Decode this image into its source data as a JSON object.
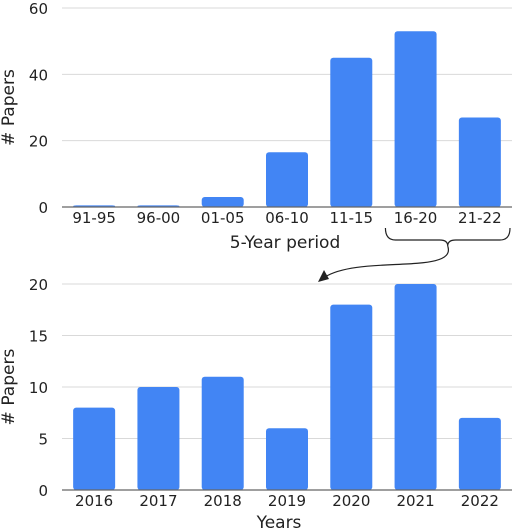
{
  "chart_data": [
    {
      "type": "bar",
      "categories": [
        "91-95",
        "96-00",
        "01-05",
        "06-10",
        "11-15",
        "16-20",
        "21-22"
      ],
      "values": [
        0.5,
        0.5,
        3,
        16.5,
        45,
        53,
        27
      ],
      "xlabel": "5-Year period",
      "ylabel": "# Papers",
      "ylim": [
        0,
        60
      ],
      "yticks": [
        0,
        20,
        40,
        60
      ],
      "grid": true,
      "color": "#4285f4"
    },
    {
      "type": "bar",
      "categories": [
        "2016",
        "2017",
        "2018",
        "2019",
        "2020",
        "2021",
        "2022"
      ],
      "values": [
        8,
        10,
        11,
        6,
        18,
        20,
        7
      ],
      "xlabel": "Years",
      "ylabel": "# Papers",
      "ylim": [
        0,
        20
      ],
      "yticks": [
        0,
        5,
        10,
        15,
        20
      ],
      "grid": true,
      "color": "#4285f4"
    }
  ],
  "annotation": {
    "type": "bracket-arrow",
    "description": "Bracket under 16-20 and 21-22 pointing to lower chart"
  }
}
